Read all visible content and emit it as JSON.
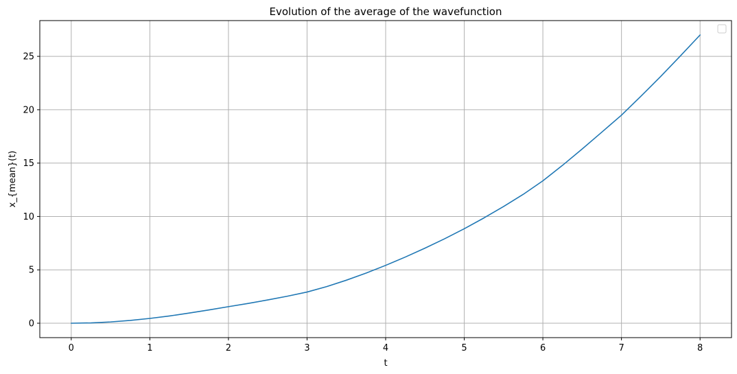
{
  "chart_data": {
    "type": "line",
    "title": "Evolution of the average of the wavefunction",
    "xlabel": "t",
    "ylabel": "x_{mean}(t)",
    "xlim": [
      -0.4,
      8.4
    ],
    "ylim": [
      -1.35,
      28.35
    ],
    "xticks": [
      "0",
      "1",
      "2",
      "3",
      "4",
      "5",
      "6",
      "7",
      "8"
    ],
    "yticks": [
      "0",
      "5",
      "10",
      "15",
      "20",
      "25"
    ],
    "grid": true,
    "legend": "top-right",
    "series": [
      {
        "color": "#1f77b4",
        "x": [
          0,
          0.25,
          0.5,
          0.75,
          1.0,
          1.25,
          1.5,
          1.75,
          2.0,
          2.25,
          2.5,
          2.75,
          3.0,
          3.25,
          3.5,
          3.75,
          4.0,
          4.25,
          4.5,
          4.75,
          5.0,
          5.25,
          5.5,
          5.75,
          6.0,
          6.25,
          6.5,
          6.75,
          7.0,
          7.25,
          7.5,
          7.75,
          8.0
        ],
        "y": [
          0,
          0.03,
          0.12,
          0.26,
          0.45,
          0.68,
          0.95,
          1.24,
          1.55,
          1.85,
          2.18,
          2.53,
          2.92,
          3.43,
          4.03,
          4.69,
          5.42,
          6.2,
          7.03,
          7.91,
          8.85,
          9.86,
          10.93,
          12.07,
          13.34,
          14.79,
          16.32,
          17.9,
          19.49,
          21.28,
          23.12,
          25.04,
          27.0
        ]
      }
    ]
  }
}
